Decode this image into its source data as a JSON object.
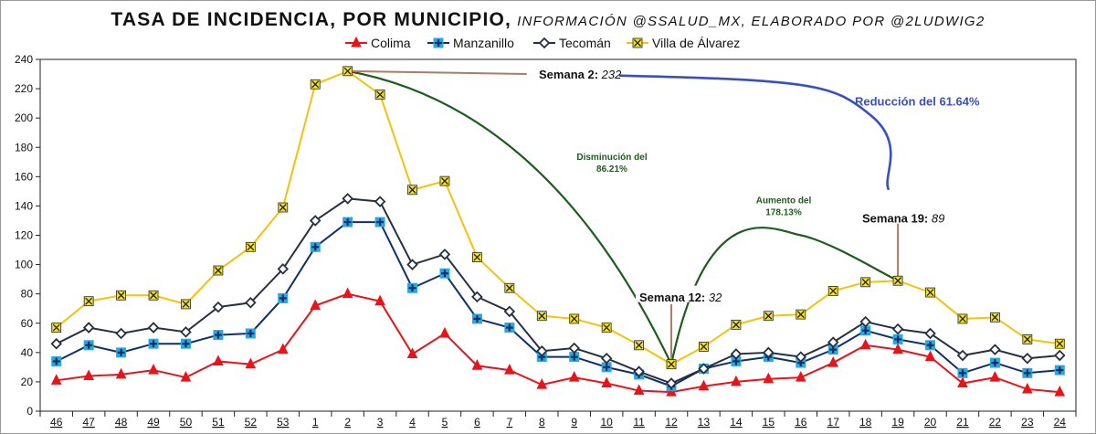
{
  "title": {
    "main": "TASA DE INCIDENCIA, POR MUNICIPIO,",
    "sub": "INFORMACIÓN @SSALUD_MX, ELABORADO POR @2LUDWIG2"
  },
  "chart_data": {
    "type": "line",
    "categories": [
      "46",
      "47",
      "48",
      "49",
      "50",
      "51",
      "52",
      "53",
      "1",
      "2",
      "3",
      "4",
      "5",
      "6",
      "7",
      "8",
      "9",
      "10",
      "11",
      "12",
      "13",
      "14",
      "15",
      "16",
      "17",
      "18",
      "19",
      "20",
      "21",
      "22",
      "23",
      "24"
    ],
    "ylim": [
      0,
      240
    ],
    "yticks": [
      0,
      20,
      40,
      60,
      80,
      100,
      120,
      140,
      160,
      180,
      200,
      220,
      240
    ],
    "grid": false,
    "legend_position": "top",
    "series": [
      {
        "name": "Colima",
        "color": "#e8141a",
        "marker": "triangle",
        "values": [
          21,
          24,
          25,
          28,
          23,
          34,
          32,
          42,
          72,
          80,
          75,
          39,
          53,
          31,
          28,
          18,
          23,
          19,
          14,
          13,
          17,
          20,
          22,
          23,
          33,
          45,
          42,
          37,
          19,
          23,
          15,
          13
        ]
      },
      {
        "name": "Manzanillo",
        "color": "#0f2f6b",
        "marker": "plus-square",
        "values": [
          34,
          45,
          40,
          46,
          46,
          52,
          53,
          77,
          112,
          129,
          129,
          84,
          94,
          63,
          57,
          37,
          37,
          30,
          25,
          17,
          29,
          34,
          37,
          33,
          42,
          55,
          49,
          45,
          26,
          33,
          26,
          28
        ]
      },
      {
        "name": "Tecomán",
        "color": "#27303f",
        "marker": "diamond",
        "values": [
          46,
          57,
          53,
          57,
          54,
          71,
          74,
          97,
          130,
          145,
          143,
          100,
          107,
          78,
          68,
          41,
          43,
          36,
          27,
          19,
          29,
          39,
          40,
          37,
          47,
          61,
          56,
          53,
          38,
          42,
          36,
          38
        ]
      },
      {
        "name": "Villa de Álvarez",
        "color": "#f4c20d",
        "marker": "x-square",
        "values": [
          57,
          75,
          79,
          79,
          73,
          96,
          112,
          139,
          223,
          232,
          216,
          151,
          157,
          105,
          84,
          65,
          63,
          57,
          45,
          32,
          44,
          59,
          65,
          66,
          82,
          88,
          89,
          81,
          63,
          64,
          49,
          46
        ]
      }
    ],
    "annotations": {
      "week2": {
        "label": "Semana 2:",
        "value": "232"
      },
      "week12": {
        "label": "Semana 12:",
        "value": "32"
      },
      "week19": {
        "label": "Semana 19:",
        "value": "89"
      },
      "decrease": [
        "Disminución del",
        "86.21%"
      ],
      "increase": [
        "Aumento del",
        "178.13%"
      ],
      "reduction": "Reducción del 61.64%"
    }
  }
}
